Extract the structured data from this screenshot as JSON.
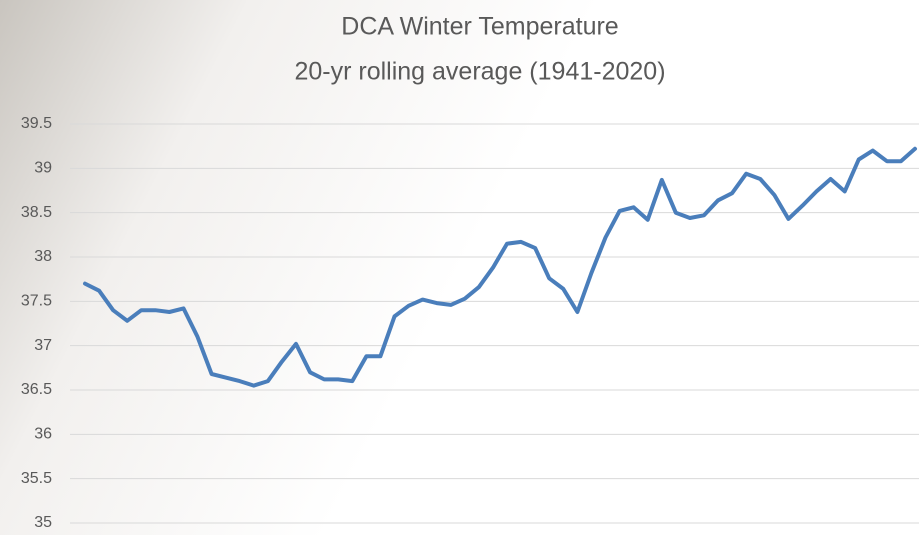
{
  "chart_data": {
    "type": "line",
    "title": "DCA Winter Temperature",
    "subtitle": "20-yr rolling average (1941-2020)",
    "categories": [
      null,
      null,
      null,
      null,
      null,
      null,
      null,
      null,
      null,
      null,
      null,
      null,
      null,
      null,
      null,
      null,
      null,
      null,
      null,
      null,
      null,
      null,
      null,
      null,
      null,
      null,
      null,
      null,
      null,
      null,
      null,
      null,
      null,
      null,
      null,
      null,
      null,
      null,
      null,
      null,
      null,
      null,
      null,
      null,
      null,
      null,
      null,
      null,
      null,
      null,
      null,
      null,
      null,
      null,
      null,
      null,
      null,
      null,
      null,
      null
    ],
    "values": [
      37.7,
      37.62,
      37.4,
      37.28,
      37.4,
      37.4,
      37.38,
      37.42,
      37.1,
      36.68,
      36.64,
      36.6,
      36.55,
      36.6,
      36.82,
      37.02,
      36.7,
      36.62,
      36.62,
      36.6,
      36.88,
      36.88,
      37.33,
      37.45,
      37.52,
      37.48,
      37.46,
      37.53,
      37.66,
      37.88,
      38.15,
      38.17,
      38.1,
      37.76,
      37.64,
      37.38,
      37.82,
      38.22,
      38.52,
      38.56,
      38.42,
      38.87,
      38.5,
      38.44,
      38.47,
      38.64,
      38.72,
      38.94,
      38.88,
      38.7,
      38.43,
      38.58,
      38.74,
      38.88,
      38.74,
      39.1,
      39.2,
      39.08,
      39.08,
      39.22
    ],
    "color": "#4a7ebb",
    "ylim": [
      35,
      39.5
    ],
    "yticks": [
      35,
      35.5,
      36,
      36.5,
      37,
      37.5,
      38,
      38.5,
      39,
      39.5
    ],
    "grid": true
  }
}
